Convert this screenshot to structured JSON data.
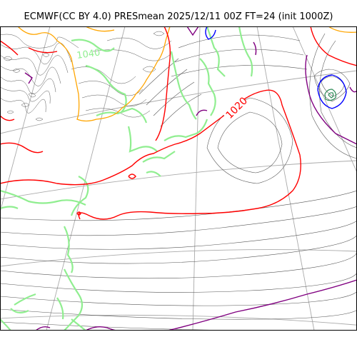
{
  "title": "ECMWF(CC BY 4.0) PRESmean 2025/12/11 00Z FT=24 (init 1000Z)",
  "colors": {
    "isobar_thin": "#555555",
    "isobar_1020": "#ff0000",
    "isobar_1040": "#ffa500",
    "isobar_1000": "#800080",
    "isobar_980": "#0000ff",
    "coastline": "#90ee90",
    "graticule": "#aaaaaa"
  },
  "contour_labels": [
    {
      "text": "1020",
      "color": "#ff0000"
    },
    {
      "text": "1040",
      "color": "#90ee90"
    }
  ]
}
